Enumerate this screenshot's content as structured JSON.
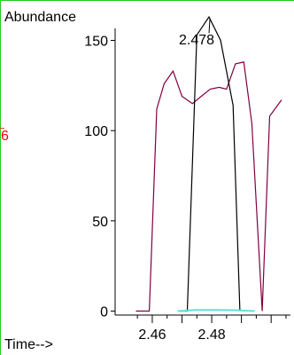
{
  "chart_data": {
    "type": "line",
    "ylabel": "Abundance",
    "xlabel": "Time-->",
    "x_ticks": [
      2.46,
      2.47,
      2.48,
      2.49,
      2.5
    ],
    "x_tick_labels": [
      "2.46",
      "",
      "2.48",
      "",
      ""
    ],
    "y_ticks": [
      0,
      50,
      100,
      150
    ],
    "y_tick_labels": [
      "0",
      "50",
      "100",
      "150"
    ],
    "xlim": [
      2.4475,
      2.5065
    ],
    "ylim": [
      -5,
      165
    ],
    "peak_annotation": {
      "label": "2.478",
      "x": 2.4791,
      "y": 154
    },
    "left_edge_fragment": "6",
    "series": [
      {
        "color": "#800040",
        "x": [
          2.4545,
          2.459,
          2.4615,
          2.464,
          2.467,
          2.47,
          2.4735,
          2.4765,
          2.4795,
          2.4825,
          2.485,
          2.488,
          2.4908,
          2.4935,
          2.497,
          2.4995,
          2.5035
        ],
        "y": [
          0,
          0,
          112,
          126,
          133,
          119,
          115,
          119,
          123,
          124,
          123,
          137,
          138,
          104,
          0,
          108,
          117
        ]
      },
      {
        "color": "#000000",
        "x": [
          2.4685,
          2.4718,
          2.475,
          2.4791,
          2.483,
          2.4872,
          2.4895
        ],
        "y": [
          0,
          0,
          153,
          163,
          150,
          114,
          0
        ]
      },
      {
        "color": "#66dddd",
        "x": [
          2.4685,
          2.4745,
          2.481,
          2.4875,
          2.4945
        ],
        "y": [
          0,
          0.6,
          0.6,
          0.5,
          0
        ]
      }
    ]
  }
}
